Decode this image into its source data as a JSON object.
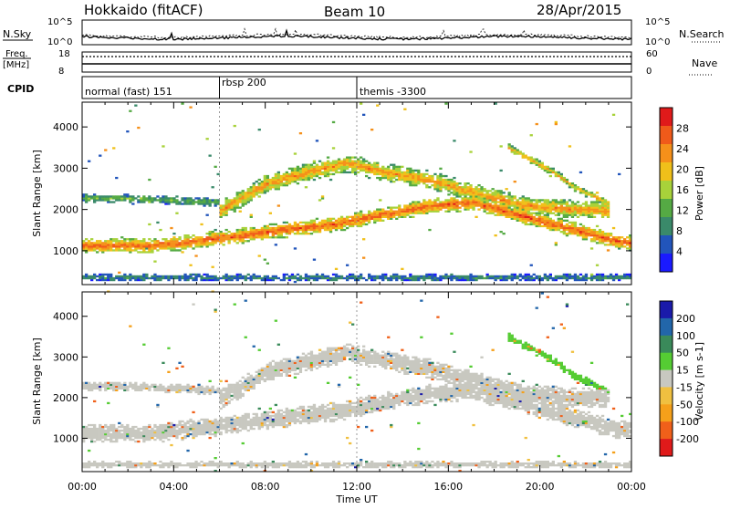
{
  "header": {
    "station": "Hokkaido (fitACF)",
    "beam": "Beam 10",
    "date": "28/Apr/2015"
  },
  "top_panels": {
    "nsky_label": "N.Sky",
    "nsky_ticks": [
      "10^5",
      "10^0"
    ],
    "nsearch_label": "N.Search",
    "nsearch_ticks": [
      "10^5",
      "10^0"
    ],
    "freq_label_1": "Freq.",
    "freq_label_2": "[MHz]",
    "freq_ticks": [
      "18",
      "8"
    ],
    "nave_label": "Nave",
    "nave_ticks": [
      "60",
      "0"
    ],
    "cpid_label": "CPID",
    "cpid_segments": [
      {
        "label": "normal (fast) 151",
        "start_hour": 0.0
      },
      {
        "label": "rbsp 200",
        "start_hour": 6.0
      },
      {
        "label": "themis -3300",
        "start_hour": 12.0
      }
    ]
  },
  "chart_data": [
    {
      "type": "heatmap",
      "ylabel": "Slant Range [km]",
      "xlabel": "",
      "x_ticks": [
        "00:00",
        "04:00",
        "08:00",
        "12:00",
        "16:00",
        "20:00",
        "00:00"
      ],
      "xlim_hours": [
        0,
        24
      ],
      "y_ticks": [
        1000,
        2000,
        3000,
        4000
      ],
      "ylim": [
        180,
        4600
      ],
      "colorbar": {
        "label": "Power [dB]",
        "ticks": [
          4,
          8,
          12,
          16,
          20,
          24,
          28
        ],
        "range": [
          0,
          32
        ],
        "colors": [
          "#1a1aff",
          "#2255bb",
          "#3a8a6a",
          "#55aa44",
          "#a8d23a",
          "#f0c01a",
          "#f5901a",
          "#f05a1a",
          "#e01a1a"
        ]
      },
      "bands": [
        {
          "name": "main",
          "points": [
            [
              0,
              1100
            ],
            [
              3,
              1100
            ],
            [
              6,
              1280
            ],
            [
              9,
              1500
            ],
            [
              11,
              1620
            ],
            [
              13,
              1850
            ],
            [
              15,
              2050
            ],
            [
              17,
              2150
            ],
            [
              19,
              1850
            ],
            [
              21,
              1550
            ],
            [
              23,
              1250
            ],
            [
              24,
              1150
            ]
          ],
          "width": 380,
          "value": 27
        },
        {
          "name": "upper",
          "points": [
            [
              6,
              1950
            ],
            [
              8,
              2600
            ],
            [
              10,
              2900
            ],
            [
              11.5,
              3100
            ],
            [
              13,
              2900
            ],
            [
              15,
              2700
            ],
            [
              17,
              2400
            ],
            [
              19,
              2100
            ],
            [
              21,
              2000
            ],
            [
              23,
              1950
            ]
          ],
          "width": 450,
          "value": 23
        },
        {
          "name": "lower-weak",
          "points": [
            [
              0,
              2250
            ],
            [
              2,
              2250
            ],
            [
              4,
              2200
            ],
            [
              6,
              2150
            ]
          ],
          "width": 200,
          "value": 13
        },
        {
          "name": "far",
          "points": [
            [
              18.5,
              3500
            ],
            [
              19.5,
              3200
            ],
            [
              20.5,
              2900
            ],
            [
              21.5,
              2500
            ],
            [
              23,
              2100
            ]
          ],
          "width": 180,
          "value": 22
        },
        {
          "name": "near-ground",
          "points": [
            [
              0,
              330
            ],
            [
              24,
              330
            ]
          ],
          "width": 160,
          "value": 9
        }
      ]
    },
    {
      "type": "heatmap",
      "ylabel": "Slant Range [km]",
      "xlabel": "Time UT",
      "x_ticks": [
        "00:00",
        "04:00",
        "08:00",
        "12:00",
        "16:00",
        "20:00",
        "00:00"
      ],
      "xlim_hours": [
        0,
        24
      ],
      "y_ticks": [
        1000,
        2000,
        3000,
        4000
      ],
      "ylim": [
        180,
        4600
      ],
      "colorbar": {
        "label": "Velocity [m s-1]",
        "ticks": [
          200,
          100,
          50,
          15,
          -15,
          -50,
          -100,
          -200
        ],
        "range": [
          -250,
          250
        ],
        "colors": [
          "#1a1aaa",
          "#2266aa",
          "#3a8a5a",
          "#55cc33",
          "#c8c8c0",
          "#f0c040",
          "#f5a01a",
          "#f0601a",
          "#e01a1a"
        ]
      },
      "bands": [
        {
          "name": "main",
          "points": [
            [
              0,
              1100
            ],
            [
              3,
              1100
            ],
            [
              6,
              1280
            ],
            [
              9,
              1500
            ],
            [
              11,
              1620
            ],
            [
              13,
              1850
            ],
            [
              15,
              2050
            ],
            [
              17,
              2150
            ],
            [
              19,
              1850
            ],
            [
              21,
              1550
            ],
            [
              23,
              1250
            ],
            [
              24,
              1150
            ]
          ],
          "width": 480,
          "value": 0
        },
        {
          "name": "upper",
          "points": [
            [
              6,
              1950
            ],
            [
              8,
              2600
            ],
            [
              10,
              2900
            ],
            [
              11.5,
              3100
            ],
            [
              13,
              2900
            ],
            [
              15,
              2700
            ],
            [
              17,
              2400
            ],
            [
              19,
              2100
            ],
            [
              21,
              2000
            ],
            [
              23,
              1950
            ]
          ],
          "width": 500,
          "value": 0
        },
        {
          "name": "lower-weak",
          "points": [
            [
              0,
              2250
            ],
            [
              2,
              2250
            ],
            [
              4,
              2200
            ],
            [
              6,
              2150
            ]
          ],
          "width": 220,
          "value": 0
        },
        {
          "name": "far",
          "points": [
            [
              18.5,
              3500
            ],
            [
              19.5,
              3200
            ],
            [
              20.5,
              2900
            ],
            [
              21.5,
              2500
            ],
            [
              23,
              2100
            ]
          ],
          "width": 200,
          "value": 60
        },
        {
          "name": "near-ground",
          "points": [
            [
              0,
              330
            ],
            [
              24,
              330
            ]
          ],
          "width": 160,
          "value": 0
        }
      ]
    }
  ]
}
